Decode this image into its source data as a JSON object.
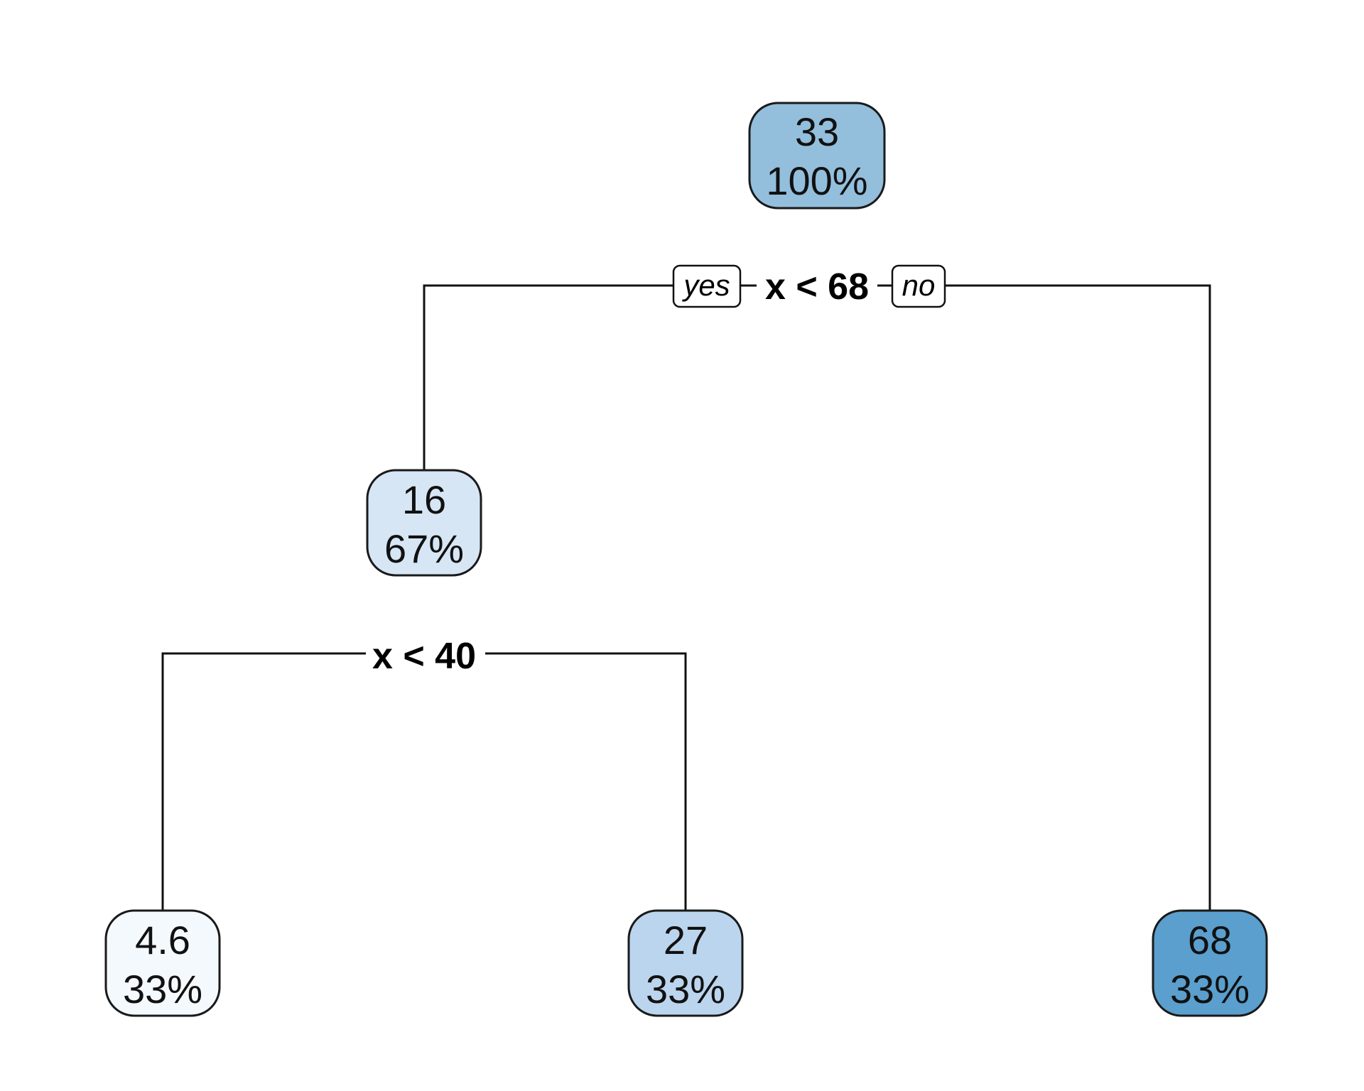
{
  "tree": {
    "nodes": {
      "root": {
        "value": "33",
        "percent": "100%",
        "fill": "#93bfdc"
      },
      "left": {
        "value": "16",
        "percent": "67%",
        "fill": "#d7e6f5"
      },
      "right": {
        "value": "68",
        "percent": "33%",
        "fill": "#5a9fcd"
      },
      "leaf_a": {
        "value": "4.6",
        "percent": "33%",
        "fill": "#f4f9fe"
      },
      "leaf_b": {
        "value": "27",
        "percent": "33%",
        "fill": "#bcd5ee"
      }
    },
    "splits": {
      "root": "x < 68",
      "left": "x < 40"
    },
    "branch_tags": {
      "yes": "yes",
      "no": "no"
    }
  }
}
